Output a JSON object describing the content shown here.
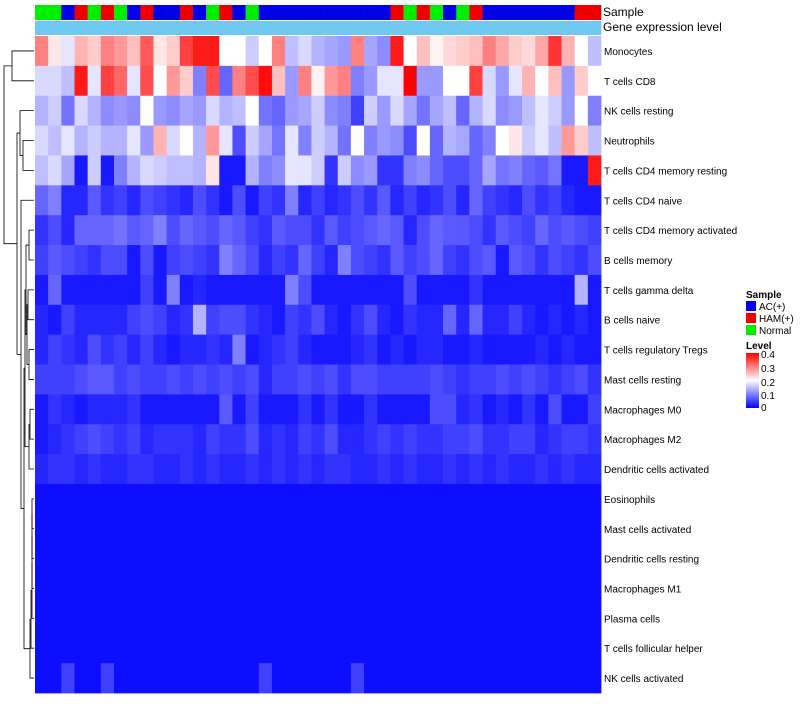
{
  "chart_data": {
    "type": "heatmap",
    "title": "",
    "annotation_tracks": [
      "Sample",
      "Gene expression level"
    ],
    "sample_groups": {
      "AC": "AC(+)",
      "HAM": "HAM(+)",
      "Normal": "Normal"
    },
    "sample_colors": {
      "AC": "#0000e6",
      "HAM": "#ee0000",
      "Normal": "#00ee00"
    },
    "sample_annotation": [
      "Normal",
      "Normal",
      "AC",
      "HAM",
      "Normal",
      "HAM",
      "Normal",
      "AC",
      "HAM",
      "AC",
      "AC",
      "HAM",
      "AC",
      "Normal",
      "HAM",
      "AC",
      "Normal",
      "AC",
      "AC",
      "AC",
      "AC",
      "AC",
      "AC",
      "AC",
      "AC",
      "AC",
      "AC",
      "HAM",
      "Normal",
      "HAM",
      "Normal",
      "AC",
      "Normal",
      "HAM",
      "AC",
      "AC",
      "AC",
      "AC",
      "AC",
      "AC",
      "AC",
      "HAM",
      "HAM"
    ],
    "expression_color": "#6fc8ef",
    "rows": [
      "Monocytes",
      "T cells CD8",
      "NK cells resting",
      "Neutrophils",
      "T cells CD4 memory resting",
      "T cells CD4 naive",
      "T cells CD4 memory activated",
      "B cells memory",
      "T cells gamma delta",
      "B cells naive",
      "T cells regulatory  Tregs",
      "Mast cells resting",
      "Macrophages M0",
      "Macrophages M2",
      "Dendritic cells activated",
      "Eosinophils",
      "Mast cells activated",
      "Dendritic cells resting",
      "Macrophages M1",
      "Plasma cells",
      "T cells follicular helper",
      "NK cells activated"
    ],
    "n_columns": 43,
    "value_range": [
      0,
      0.4
    ],
    "legend": {
      "sample_title": "Sample",
      "level_title": "Level",
      "level_ticks": [
        "0.4",
        "0.3",
        "0.2",
        "0.1",
        "0"
      ],
      "placement": "right"
    },
    "row_profiles": {
      "Monocytes": [
        0.3,
        0.22,
        0.18,
        0.26,
        0.24,
        0.3,
        0.28,
        0.25,
        0.33,
        0.22,
        0.24,
        0.35,
        0.38,
        0.38,
        0.2,
        0.2,
        0.16,
        0.2,
        0.3,
        0.15,
        0.17,
        0.14,
        0.13,
        0.12,
        0.3,
        0.13,
        0.11,
        0.38,
        0.2,
        0.25,
        0.21,
        0.23,
        0.24,
        0.25,
        0.3,
        0.27,
        0.24,
        0.23,
        0.27,
        0.36,
        0.26,
        0.2,
        0.15
      ],
      "T cells CD8": [
        0.17,
        0.17,
        0.15,
        0.38,
        0.18,
        0.35,
        0.32,
        0.18,
        0.34,
        0.2,
        0.28,
        0.24,
        0.1,
        0.34,
        0.08,
        0.3,
        0.34,
        0.39,
        0.25,
        0.12,
        0.3,
        0.21,
        0.28,
        0.3,
        0.1,
        0.12,
        0.18,
        0.18,
        0.4,
        0.12,
        0.12,
        0.2,
        0.2,
        0.35,
        0.17,
        0.12,
        0.18,
        0.26,
        0.2,
        0.25,
        0.12,
        0.24,
        0.2
      ],
      "NK cells resting": [
        0.14,
        0.16,
        0.09,
        0.17,
        0.14,
        0.11,
        0.12,
        0.11,
        0.2,
        0.12,
        0.11,
        0.13,
        0.12,
        0.17,
        0.14,
        0.15,
        0.2,
        0.09,
        0.08,
        0.12,
        0.13,
        0.16,
        0.11,
        0.1,
        0.05,
        0.16,
        0.12,
        0.17,
        0.13,
        0.09,
        0.13,
        0.15,
        0.08,
        0.14,
        0.17,
        0.11,
        0.12,
        0.15,
        0.18,
        0.16,
        0.12,
        0.2,
        0.1
      ],
      "Neutrophils": [
        0.17,
        0.15,
        0.18,
        0.14,
        0.16,
        0.14,
        0.14,
        0.18,
        0.12,
        0.26,
        0.17,
        0.2,
        0.14,
        0.28,
        0.18,
        0.06,
        0.16,
        0.13,
        0.09,
        0.18,
        0.1,
        0.16,
        0.14,
        0.09,
        0.2,
        0.1,
        0.12,
        0.11,
        0.06,
        0.2,
        0.08,
        0.14,
        0.13,
        0.08,
        0.1,
        0.2,
        0.22,
        0.16,
        0.18,
        0.15,
        0.28,
        0.24,
        0.15
      ],
      "T cells CD4 memory resting": [
        0.15,
        0.17,
        0.13,
        0.02,
        0.16,
        0.02,
        0.1,
        0.14,
        0.17,
        0.16,
        0.15,
        0.15,
        0.14,
        0.22,
        0.02,
        0.02,
        0.14,
        0.1,
        0.11,
        0.18,
        0.18,
        0.16,
        0.04,
        0.16,
        0.11,
        0.12,
        0.04,
        0.04,
        0.1,
        0.11,
        0.08,
        0.06,
        0.06,
        0.08,
        0.13,
        0.09,
        0.1,
        0.08,
        0.07,
        0.09,
        0.02,
        0.02,
        0.38
      ],
      "T cells CD4 naive": [
        0.08,
        0.1,
        0.03,
        0.03,
        0.07,
        0.04,
        0.05,
        0.03,
        0.06,
        0.05,
        0.04,
        0.03,
        0.06,
        0.04,
        0.02,
        0.06,
        0.02,
        0.05,
        0.04,
        0.1,
        0.03,
        0.05,
        0.03,
        0.04,
        0.06,
        0.04,
        0.07,
        0.03,
        0.05,
        0.03,
        0.04,
        0.06,
        0.03,
        0.08,
        0.05,
        0.04,
        0.03,
        0.06,
        0.04,
        0.05,
        0.03,
        0.02,
        0.02
      ],
      "T cells CD4 memory activated": [
        0.04,
        0.06,
        0.03,
        0.08,
        0.08,
        0.08,
        0.09,
        0.07,
        0.08,
        0.1,
        0.06,
        0.08,
        0.07,
        0.06,
        0.08,
        0.07,
        0.05,
        0.04,
        0.07,
        0.06,
        0.06,
        0.04,
        0.07,
        0.05,
        0.06,
        0.07,
        0.08,
        0.07,
        0.03,
        0.06,
        0.08,
        0.07,
        0.07,
        0.06,
        0.04,
        0.07,
        0.06,
        0.05,
        0.08,
        0.06,
        0.07,
        0.06,
        0.05
      ],
      "B cells memory": [
        0.05,
        0.07,
        0.06,
        0.05,
        0.04,
        0.06,
        0.06,
        0.02,
        0.06,
        0.02,
        0.05,
        0.06,
        0.05,
        0.04,
        0.1,
        0.08,
        0.06,
        0.03,
        0.05,
        0.04,
        0.08,
        0.05,
        0.03,
        0.1,
        0.06,
        0.05,
        0.04,
        0.07,
        0.05,
        0.06,
        0.08,
        0.05,
        0.04,
        0.06,
        0.07,
        0.02,
        0.07,
        0.06,
        0.04,
        0.06,
        0.05,
        0.04,
        0.06
      ],
      "T cells gamma delta": [
        0.02,
        0.08,
        0.02,
        0.02,
        0.02,
        0.02,
        0.02,
        0.02,
        0.05,
        0.02,
        0.1,
        0.02,
        0.03,
        0.02,
        0.02,
        0.02,
        0.02,
        0.02,
        0.02,
        0.1,
        0.06,
        0.02,
        0.02,
        0.02,
        0.02,
        0.02,
        0.02,
        0.02,
        0.06,
        0.02,
        0.02,
        0.02,
        0.02,
        0.04,
        0.02,
        0.02,
        0.02,
        0.02,
        0.02,
        0.02,
        0.02,
        0.14,
        0.02
      ],
      "B cells naive": [
        0.03,
        0.02,
        0.05,
        0.03,
        0.03,
        0.03,
        0.03,
        0.05,
        0.06,
        0.05,
        0.03,
        0.04,
        0.14,
        0.05,
        0.06,
        0.06,
        0.04,
        0.03,
        0.02,
        0.05,
        0.04,
        0.06,
        0.03,
        0.02,
        0.04,
        0.06,
        0.03,
        0.02,
        0.04,
        0.03,
        0.03,
        0.08,
        0.03,
        0.08,
        0.03,
        0.03,
        0.05,
        0.03,
        0.02,
        0.03,
        0.02,
        0.03,
        0.02
      ],
      "T cells regulatory  Tregs": [
        0.03,
        0.05,
        0.04,
        0.03,
        0.06,
        0.04,
        0.05,
        0.03,
        0.05,
        0.03,
        0.02,
        0.03,
        0.03,
        0.04,
        0.03,
        0.1,
        0.02,
        0.03,
        0.04,
        0.05,
        0.03,
        0.02,
        0.02,
        0.02,
        0.03,
        0.04,
        0.02,
        0.03,
        0.02,
        0.03,
        0.03,
        0.02,
        0.02,
        0.03,
        0.02,
        0.02,
        0.02,
        0.02,
        0.03,
        0.02,
        0.03,
        0.02,
        0.02
      ],
      "Mast cells resting": [
        0.05,
        0.05,
        0.05,
        0.06,
        0.07,
        0.07,
        0.05,
        0.06,
        0.05,
        0.05,
        0.06,
        0.05,
        0.06,
        0.05,
        0.06,
        0.05,
        0.06,
        0.03,
        0.05,
        0.05,
        0.06,
        0.05,
        0.06,
        0.04,
        0.06,
        0.06,
        0.05,
        0.05,
        0.05,
        0.05,
        0.06,
        0.05,
        0.04,
        0.05,
        0.05,
        0.06,
        0.05,
        0.06,
        0.05,
        0.04,
        0.05,
        0.06,
        0.04
      ],
      "Macrophages M0": [
        0.02,
        0.04,
        0.03,
        0.02,
        0.03,
        0.03,
        0.03,
        0.04,
        0.02,
        0.02,
        0.02,
        0.02,
        0.02,
        0.02,
        0.07,
        0.02,
        0.05,
        0.02,
        0.02,
        0.02,
        0.04,
        0.02,
        0.04,
        0.02,
        0.02,
        0.04,
        0.02,
        0.02,
        0.02,
        0.02,
        0.06,
        0.06,
        0.03,
        0.04,
        0.02,
        0.03,
        0.02,
        0.04,
        0.02,
        0.06,
        0.02,
        0.02,
        0.05
      ],
      "Macrophages M2": [
        0.02,
        0.03,
        0.04,
        0.05,
        0.06,
        0.05,
        0.04,
        0.05,
        0.03,
        0.04,
        0.04,
        0.04,
        0.03,
        0.05,
        0.04,
        0.04,
        0.06,
        0.03,
        0.04,
        0.03,
        0.05,
        0.04,
        0.06,
        0.03,
        0.03,
        0.04,
        0.05,
        0.04,
        0.05,
        0.04,
        0.04,
        0.05,
        0.05,
        0.06,
        0.04,
        0.04,
        0.05,
        0.05,
        0.03,
        0.04,
        0.05,
        0.05,
        0.04
      ],
      "Dendritic cells activated": [
        0.03,
        0.04,
        0.04,
        0.03,
        0.04,
        0.03,
        0.03,
        0.04,
        0.04,
        0.03,
        0.03,
        0.04,
        0.03,
        0.04,
        0.03,
        0.03,
        0.04,
        0.03,
        0.04,
        0.03,
        0.04,
        0.03,
        0.04,
        0.04,
        0.03,
        0.03,
        0.04,
        0.03,
        0.04,
        0.03,
        0.03,
        0.04,
        0.03,
        0.04,
        0.03,
        0.04,
        0.03,
        0.03,
        0.04,
        0.03,
        0.04,
        0.03,
        0.03
      ],
      "Eosinophils": [
        0.01,
        0.01,
        0.01,
        0.01,
        0.01,
        0.01,
        0.01,
        0.01,
        0.01,
        0.01,
        0.01,
        0.01,
        0.01,
        0.01,
        0.01,
        0.01,
        0.01,
        0.01,
        0.01,
        0.01,
        0.01,
        0.01,
        0.01,
        0.01,
        0.01,
        0.01,
        0.01,
        0.01,
        0.01,
        0.01,
        0.01,
        0.01,
        0.01,
        0.01,
        0.01,
        0.01,
        0.01,
        0.01,
        0.01,
        0.01,
        0.01,
        0.01,
        0.01
      ],
      "Mast cells activated": [
        0.01,
        0.01,
        0.01,
        0.01,
        0.01,
        0.01,
        0.01,
        0.01,
        0.01,
        0.01,
        0.01,
        0.01,
        0.01,
        0.01,
        0.01,
        0.01,
        0.01,
        0.01,
        0.01,
        0.01,
        0.01,
        0.01,
        0.01,
        0.01,
        0.01,
        0.01,
        0.01,
        0.01,
        0.01,
        0.01,
        0.01,
        0.01,
        0.01,
        0.01,
        0.01,
        0.01,
        0.01,
        0.01,
        0.01,
        0.01,
        0.01,
        0.01,
        0.01
      ],
      "Dendritic cells resting": [
        0.01,
        0.01,
        0.01,
        0.01,
        0.01,
        0.01,
        0.01,
        0.01,
        0.01,
        0.01,
        0.01,
        0.01,
        0.01,
        0.01,
        0.01,
        0.01,
        0.01,
        0.01,
        0.01,
        0.01,
        0.01,
        0.01,
        0.01,
        0.01,
        0.01,
        0.01,
        0.01,
        0.01,
        0.01,
        0.01,
        0.01,
        0.01,
        0.01,
        0.01,
        0.01,
        0.01,
        0.01,
        0.01,
        0.01,
        0.01,
        0.01,
        0.01,
        0.01
      ],
      "Macrophages M1": [
        0.01,
        0.01,
        0.01,
        0.01,
        0.01,
        0.01,
        0.01,
        0.01,
        0.01,
        0.01,
        0.01,
        0.01,
        0.01,
        0.01,
        0.01,
        0.01,
        0.01,
        0.01,
        0.01,
        0.01,
        0.01,
        0.01,
        0.01,
        0.01,
        0.01,
        0.01,
        0.01,
        0.01,
        0.01,
        0.01,
        0.01,
        0.01,
        0.01,
        0.01,
        0.01,
        0.01,
        0.01,
        0.01,
        0.01,
        0.01,
        0.01,
        0.01,
        0.01
      ],
      "Plasma cells": [
        0.01,
        0.01,
        0.01,
        0.01,
        0.01,
        0.01,
        0.01,
        0.01,
        0.01,
        0.01,
        0.01,
        0.01,
        0.01,
        0.01,
        0.01,
        0.01,
        0.01,
        0.01,
        0.01,
        0.01,
        0.01,
        0.01,
        0.01,
        0.01,
        0.01,
        0.01,
        0.01,
        0.01,
        0.01,
        0.01,
        0.01,
        0.01,
        0.01,
        0.01,
        0.01,
        0.01,
        0.01,
        0.01,
        0.01,
        0.01,
        0.01,
        0.01,
        0.01
      ],
      "T cells follicular helper": [
        0.01,
        0.01,
        0.01,
        0.01,
        0.01,
        0.01,
        0.01,
        0.01,
        0.01,
        0.01,
        0.01,
        0.01,
        0.01,
        0.01,
        0.01,
        0.01,
        0.01,
        0.01,
        0.01,
        0.01,
        0.01,
        0.01,
        0.01,
        0.01,
        0.01,
        0.01,
        0.01,
        0.01,
        0.01,
        0.01,
        0.01,
        0.01,
        0.01,
        0.01,
        0.01,
        0.01,
        0.01,
        0.01,
        0.01,
        0.01,
        0.01,
        0.01,
        0.01
      ],
      "NK cells activated": [
        0.01,
        0.01,
        0.05,
        0.01,
        0.01,
        0.05,
        0.01,
        0.01,
        0.01,
        0.01,
        0.01,
        0.01,
        0.01,
        0.01,
        0.01,
        0.01,
        0.01,
        0.05,
        0.01,
        0.01,
        0.01,
        0.01,
        0.01,
        0.01,
        0.05,
        0.01,
        0.01,
        0.01,
        0.01,
        0.01,
        0.01,
        0.01,
        0.01,
        0.01,
        0.01,
        0.01,
        0.01,
        0.01,
        0.01,
        0.01,
        0.01,
        0.01,
        0.01
      ]
    }
  }
}
